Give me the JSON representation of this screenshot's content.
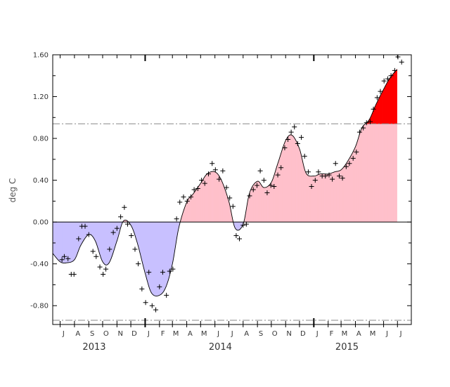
{
  "chart_data": {
    "type": "area",
    "ylabel": "deg C",
    "ylim": [
      -0.98,
      1.6
    ],
    "yticks": [
      {
        "value": 1.6,
        "label": "1.60"
      },
      {
        "value": 1.2,
        "label": "1.20"
      },
      {
        "value": 0.8,
        "label": "0.80"
      },
      {
        "value": 0.4,
        "label": "0.40"
      },
      {
        "value": 0.0,
        "label": "0.00"
      },
      {
        "value": -0.4,
        "label": "-0.40"
      },
      {
        "value": -0.8,
        "label": "-0.80"
      }
    ],
    "x_start": "2013-06-15",
    "x_end": "2015-07-31",
    "month_labels": [
      {
        "date": "2013-07-01",
        "label": "J"
      },
      {
        "date": "2013-08-01",
        "label": "A"
      },
      {
        "date": "2013-09-01",
        "label": "S"
      },
      {
        "date": "2013-10-01",
        "label": "O"
      },
      {
        "date": "2013-11-01",
        "label": "N"
      },
      {
        "date": "2013-12-01",
        "label": "D"
      },
      {
        "date": "2014-01-01",
        "label": "J"
      },
      {
        "date": "2014-02-01",
        "label": "F"
      },
      {
        "date": "2014-03-01",
        "label": "M"
      },
      {
        "date": "2014-04-01",
        "label": "A"
      },
      {
        "date": "2014-05-01",
        "label": "M"
      },
      {
        "date": "2014-06-01",
        "label": "J"
      },
      {
        "date": "2014-07-01",
        "label": "J"
      },
      {
        "date": "2014-08-01",
        "label": "A"
      },
      {
        "date": "2014-09-01",
        "label": "S"
      },
      {
        "date": "2014-10-01",
        "label": "O"
      },
      {
        "date": "2014-11-01",
        "label": "N"
      },
      {
        "date": "2014-12-01",
        "label": "D"
      },
      {
        "date": "2015-01-01",
        "label": "J"
      },
      {
        "date": "2015-02-01",
        "label": "F"
      },
      {
        "date": "2015-03-01",
        "label": "M"
      },
      {
        "date": "2015-04-01",
        "label": "A"
      },
      {
        "date": "2015-05-01",
        "label": "M"
      },
      {
        "date": "2015-06-01",
        "label": "J"
      },
      {
        "date": "2015-07-01",
        "label": "J"
      }
    ],
    "year_labels": [
      {
        "date": "2013-10-01",
        "label": "2013"
      },
      {
        "date": "2014-07-01",
        "label": "2014"
      },
      {
        "date": "2015-04-01",
        "label": "2015"
      }
    ],
    "thresholds": [
      0.94,
      -0.94
    ],
    "colors": {
      "positive_fill": "#ffc0cb",
      "negative_fill": "#c8c0ff",
      "threshold_exceed_fill": "#ff0000",
      "curve": "#000000",
      "markers": "#000000",
      "threshold_line": "#888888",
      "zero_line": "#000000"
    },
    "series": [
      {
        "points": [
          [
            "2013-06-15",
            -0.3
          ],
          [
            "2013-07-01",
            -0.38
          ],
          [
            "2013-07-15",
            -0.39
          ],
          [
            "2013-08-01",
            -0.36
          ],
          [
            "2013-08-15",
            -0.22
          ],
          [
            "2013-09-01",
            -0.12
          ],
          [
            "2013-09-15",
            -0.18
          ],
          [
            "2013-10-01",
            -0.38
          ],
          [
            "2013-10-15",
            -0.39
          ],
          [
            "2013-11-01",
            -0.18
          ],
          [
            "2013-11-15",
            0.01
          ],
          [
            "2013-12-01",
            -0.03
          ],
          [
            "2013-12-15",
            -0.2
          ],
          [
            "2014-01-01",
            -0.49
          ],
          [
            "2014-01-15",
            -0.68
          ],
          [
            "2014-02-01",
            -0.7
          ],
          [
            "2014-02-15",
            -0.62
          ],
          [
            "2014-03-01",
            -0.4
          ],
          [
            "2014-03-15",
            -0.05
          ],
          [
            "2014-04-01",
            0.19
          ],
          [
            "2014-04-15",
            0.27
          ],
          [
            "2014-05-01",
            0.37
          ],
          [
            "2014-05-15",
            0.46
          ],
          [
            "2014-06-01",
            0.48
          ],
          [
            "2014-06-15",
            0.4
          ],
          [
            "2014-07-01",
            0.2
          ],
          [
            "2014-07-15",
            -0.06
          ],
          [
            "2014-08-01",
            -0.02
          ],
          [
            "2014-08-15",
            0.28
          ],
          [
            "2014-09-01",
            0.39
          ],
          [
            "2014-09-15",
            0.33
          ],
          [
            "2014-10-01",
            0.38
          ],
          [
            "2014-10-15",
            0.56
          ],
          [
            "2014-11-01",
            0.78
          ],
          [
            "2014-11-15",
            0.83
          ],
          [
            "2014-12-01",
            0.7
          ],
          [
            "2014-12-15",
            0.47
          ],
          [
            "2015-01-01",
            0.44
          ],
          [
            "2015-01-15",
            0.46
          ],
          [
            "2015-02-01",
            0.46
          ],
          [
            "2015-02-15",
            0.48
          ],
          [
            "2015-03-01",
            0.5
          ],
          [
            "2015-03-15",
            0.58
          ],
          [
            "2015-04-01",
            0.72
          ],
          [
            "2015-04-15",
            0.9
          ],
          [
            "2015-05-01",
            0.98
          ],
          [
            "2015-05-15",
            1.12
          ],
          [
            "2015-06-01",
            1.27
          ],
          [
            "2015-06-15",
            1.38
          ],
          [
            "2015-06-30",
            1.46
          ]
        ]
      },
      {
        "points": [
          [
            "2013-07-05",
            -0.36
          ],
          [
            "2013-07-10",
            -0.33
          ],
          [
            "2013-07-18",
            -0.35
          ],
          [
            "2013-07-25",
            -0.5
          ],
          [
            "2013-07-31",
            -0.5
          ],
          [
            "2013-08-10",
            -0.16
          ],
          [
            "2013-08-17",
            -0.04
          ],
          [
            "2013-08-24",
            -0.04
          ],
          [
            "2013-09-01",
            -0.12
          ],
          [
            "2013-09-10",
            -0.28
          ],
          [
            "2013-09-17",
            -0.33
          ],
          [
            "2013-09-25",
            -0.43
          ],
          [
            "2013-10-02",
            -0.5
          ],
          [
            "2013-10-08",
            -0.45
          ],
          [
            "2013-10-16",
            -0.26
          ],
          [
            "2013-10-24",
            -0.1
          ],
          [
            "2013-11-01",
            -0.06
          ],
          [
            "2013-11-09",
            0.05
          ],
          [
            "2013-11-17",
            0.14
          ],
          [
            "2013-11-24",
            -0.02
          ],
          [
            "2013-12-02",
            -0.13
          ],
          [
            "2013-12-10",
            -0.26
          ],
          [
            "2013-12-17",
            -0.4
          ],
          [
            "2013-12-25",
            -0.64
          ],
          [
            "2014-01-02",
            -0.77
          ],
          [
            "2014-01-09",
            -0.48
          ],
          [
            "2014-01-16",
            -0.8
          ],
          [
            "2014-01-24",
            -0.84
          ],
          [
            "2014-02-01",
            -0.62
          ],
          [
            "2014-02-08",
            -0.48
          ],
          [
            "2014-02-16",
            -0.7
          ],
          [
            "2014-02-23",
            -0.47
          ],
          [
            "2014-03-02",
            -0.45
          ],
          [
            "2014-03-10",
            0.03
          ],
          [
            "2014-03-17",
            0.19
          ],
          [
            "2014-03-25",
            0.24
          ],
          [
            "2014-04-02",
            0.2
          ],
          [
            "2014-04-10",
            0.24
          ],
          [
            "2014-04-17",
            0.31
          ],
          [
            "2014-04-25",
            0.32
          ],
          [
            "2014-05-03",
            0.4
          ],
          [
            "2014-05-10",
            0.37
          ],
          [
            "2014-05-18",
            0.46
          ],
          [
            "2014-05-26",
            0.56
          ],
          [
            "2014-06-02",
            0.5
          ],
          [
            "2014-06-10",
            0.41
          ],
          [
            "2014-06-18",
            0.49
          ],
          [
            "2014-06-26",
            0.33
          ],
          [
            "2014-07-03",
            0.23
          ],
          [
            "2014-07-10",
            0.15
          ],
          [
            "2014-07-17",
            -0.13
          ],
          [
            "2014-07-24",
            -0.16
          ],
          [
            "2014-08-01",
            -0.03
          ],
          [
            "2014-08-08",
            -0.02
          ],
          [
            "2014-08-15",
            0.25
          ],
          [
            "2014-08-23",
            0.31
          ],
          [
            "2014-08-31",
            0.35
          ],
          [
            "2014-09-07",
            0.49
          ],
          [
            "2014-09-15",
            0.4
          ],
          [
            "2014-09-22",
            0.28
          ],
          [
            "2014-09-30",
            0.35
          ],
          [
            "2014-10-07",
            0.34
          ],
          [
            "2014-10-15",
            0.45
          ],
          [
            "2014-10-22",
            0.52
          ],
          [
            "2014-10-30",
            0.71
          ],
          [
            "2014-11-06",
            0.79
          ],
          [
            "2014-11-13",
            0.86
          ],
          [
            "2014-11-20",
            0.91
          ],
          [
            "2014-11-27",
            0.75
          ],
          [
            "2014-12-05",
            0.81
          ],
          [
            "2014-12-12",
            0.63
          ],
          [
            "2014-12-20",
            0.48
          ],
          [
            "2014-12-27",
            0.34
          ],
          [
            "2015-01-04",
            0.4
          ],
          [
            "2015-01-11",
            0.48
          ],
          [
            "2015-01-19",
            0.44
          ],
          [
            "2015-01-26",
            0.44
          ],
          [
            "2015-02-03",
            0.45
          ],
          [
            "2015-02-10",
            0.41
          ],
          [
            "2015-02-17",
            0.56
          ],
          [
            "2015-02-25",
            0.44
          ],
          [
            "2015-03-04",
            0.42
          ],
          [
            "2015-03-12",
            0.53
          ],
          [
            "2015-03-19",
            0.56
          ],
          [
            "2015-03-27",
            0.61
          ],
          [
            "2015-04-03",
            0.67
          ],
          [
            "2015-04-10",
            0.86
          ],
          [
            "2015-04-18",
            0.9
          ],
          [
            "2015-04-25",
            0.95
          ],
          [
            "2015-05-03",
            0.96
          ],
          [
            "2015-05-10",
            1.08
          ],
          [
            "2015-05-18",
            1.19
          ],
          [
            "2015-05-25",
            1.25
          ],
          [
            "2015-06-02",
            1.35
          ],
          [
            "2015-06-10",
            1.37
          ],
          [
            "2015-06-17",
            1.4
          ],
          [
            "2015-06-25",
            1.45
          ],
          [
            "2015-07-02",
            1.58
          ],
          [
            "2015-07-10",
            1.53
          ]
        ]
      }
    ]
  }
}
